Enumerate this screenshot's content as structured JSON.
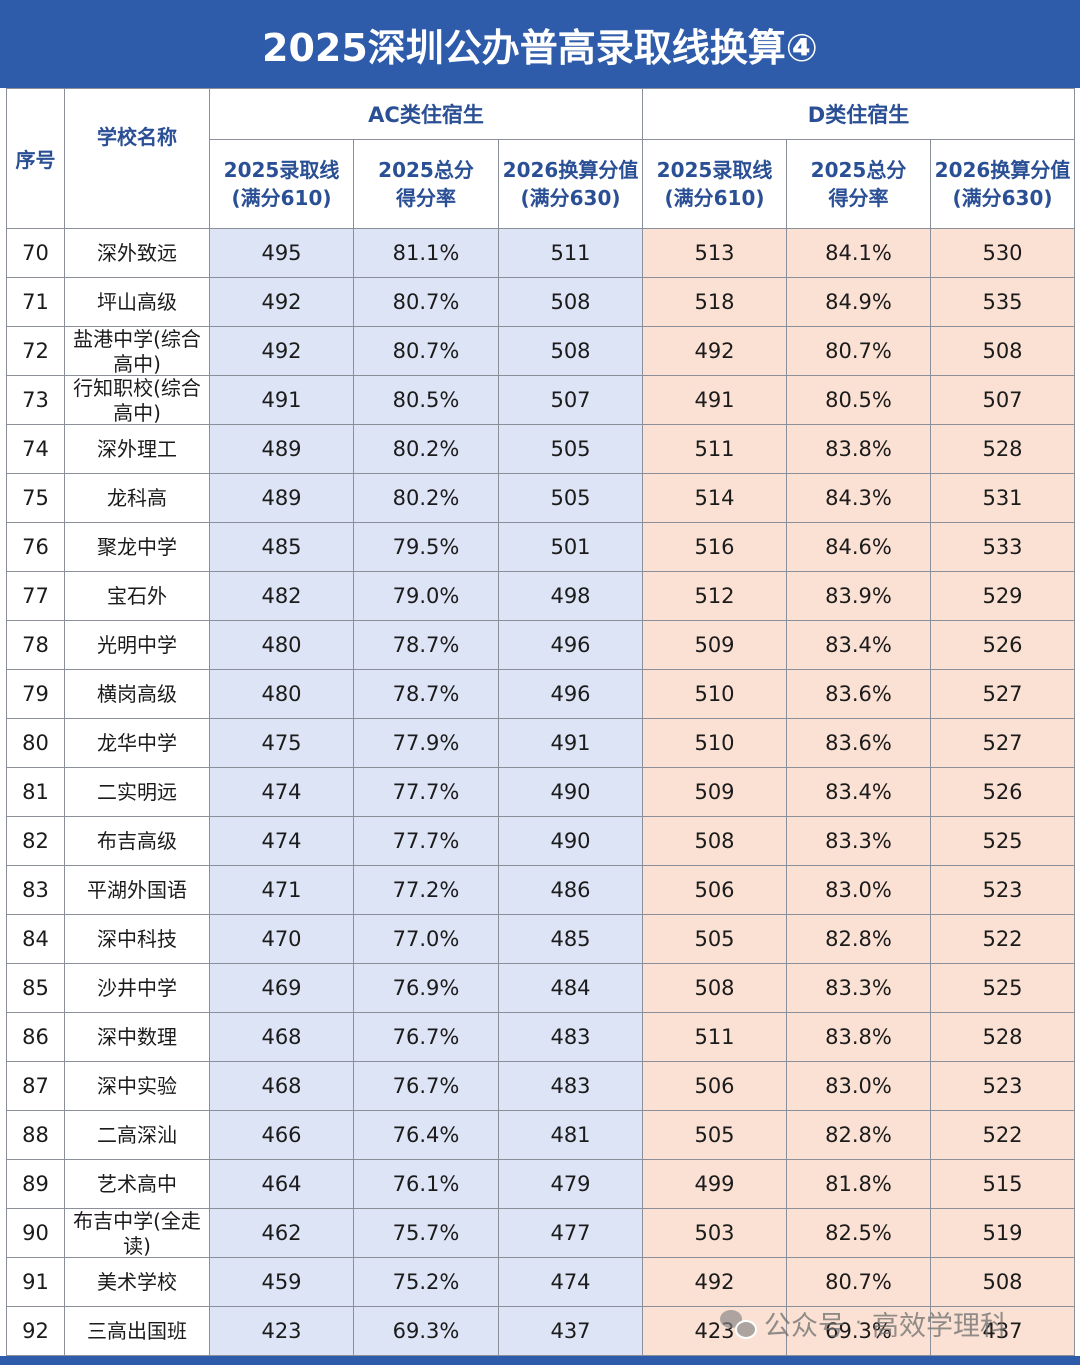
{
  "title": "2025深圳公办普高录取线换算④",
  "headers": {
    "seq": "序号",
    "school": "学校名称",
    "group_ac": "AC类住宿生",
    "group_d": "D类住宿生",
    "line_2025_a": "2025录取线",
    "line_2025_b": "(满分610)",
    "rate_a": "2025总分",
    "rate_b": "得分率",
    "conv_a": "2026换算分值",
    "conv_b": "(满分630)"
  },
  "rows": [
    {
      "seq": "70",
      "school": "深外致远",
      "ac_line": "495",
      "ac_rate": "81.1%",
      "ac_conv": "511",
      "d_line": "513",
      "d_rate": "84.1%",
      "d_conv": "530"
    },
    {
      "seq": "71",
      "school": "坪山高级",
      "ac_line": "492",
      "ac_rate": "80.7%",
      "ac_conv": "508",
      "d_line": "518",
      "d_rate": "84.9%",
      "d_conv": "535"
    },
    {
      "seq": "72",
      "school": "盐港中学(综合高中)",
      "ac_line": "492",
      "ac_rate": "80.7%",
      "ac_conv": "508",
      "d_line": "492",
      "d_rate": "80.7%",
      "d_conv": "508"
    },
    {
      "seq": "73",
      "school": "行知职校(综合高中)",
      "ac_line": "491",
      "ac_rate": "80.5%",
      "ac_conv": "507",
      "d_line": "491",
      "d_rate": "80.5%",
      "d_conv": "507"
    },
    {
      "seq": "74",
      "school": "深外理工",
      "ac_line": "489",
      "ac_rate": "80.2%",
      "ac_conv": "505",
      "d_line": "511",
      "d_rate": "83.8%",
      "d_conv": "528"
    },
    {
      "seq": "75",
      "school": "龙科高",
      "ac_line": "489",
      "ac_rate": "80.2%",
      "ac_conv": "505",
      "d_line": "514",
      "d_rate": "84.3%",
      "d_conv": "531"
    },
    {
      "seq": "76",
      "school": "聚龙中学",
      "ac_line": "485",
      "ac_rate": "79.5%",
      "ac_conv": "501",
      "d_line": "516",
      "d_rate": "84.6%",
      "d_conv": "533"
    },
    {
      "seq": "77",
      "school": "宝石外",
      "ac_line": "482",
      "ac_rate": "79.0%",
      "ac_conv": "498",
      "d_line": "512",
      "d_rate": "83.9%",
      "d_conv": "529"
    },
    {
      "seq": "78",
      "school": "光明中学",
      "ac_line": "480",
      "ac_rate": "78.7%",
      "ac_conv": "496",
      "d_line": "509",
      "d_rate": "83.4%",
      "d_conv": "526"
    },
    {
      "seq": "79",
      "school": "横岗高级",
      "ac_line": "480",
      "ac_rate": "78.7%",
      "ac_conv": "496",
      "d_line": "510",
      "d_rate": "83.6%",
      "d_conv": "527"
    },
    {
      "seq": "80",
      "school": "龙华中学",
      "ac_line": "475",
      "ac_rate": "77.9%",
      "ac_conv": "491",
      "d_line": "510",
      "d_rate": "83.6%",
      "d_conv": "527"
    },
    {
      "seq": "81",
      "school": "二实明远",
      "ac_line": "474",
      "ac_rate": "77.7%",
      "ac_conv": "490",
      "d_line": "509",
      "d_rate": "83.4%",
      "d_conv": "526"
    },
    {
      "seq": "82",
      "school": "布吉高级",
      "ac_line": "474",
      "ac_rate": "77.7%",
      "ac_conv": "490",
      "d_line": "508",
      "d_rate": "83.3%",
      "d_conv": "525"
    },
    {
      "seq": "83",
      "school": "平湖外国语",
      "ac_line": "471",
      "ac_rate": "77.2%",
      "ac_conv": "486",
      "d_line": "506",
      "d_rate": "83.0%",
      "d_conv": "523"
    },
    {
      "seq": "84",
      "school": "深中科技",
      "ac_line": "470",
      "ac_rate": "77.0%",
      "ac_conv": "485",
      "d_line": "505",
      "d_rate": "82.8%",
      "d_conv": "522"
    },
    {
      "seq": "85",
      "school": "沙井中学",
      "ac_line": "469",
      "ac_rate": "76.9%",
      "ac_conv": "484",
      "d_line": "508",
      "d_rate": "83.3%",
      "d_conv": "525"
    },
    {
      "seq": "86",
      "school": "深中数理",
      "ac_line": "468",
      "ac_rate": "76.7%",
      "ac_conv": "483",
      "d_line": "511",
      "d_rate": "83.8%",
      "d_conv": "528"
    },
    {
      "seq": "87",
      "school": "深中实验",
      "ac_line": "468",
      "ac_rate": "76.7%",
      "ac_conv": "483",
      "d_line": "506",
      "d_rate": "83.0%",
      "d_conv": "523"
    },
    {
      "seq": "88",
      "school": "二高深汕",
      "ac_line": "466",
      "ac_rate": "76.4%",
      "ac_conv": "481",
      "d_line": "505",
      "d_rate": "82.8%",
      "d_conv": "522"
    },
    {
      "seq": "89",
      "school": "艺术高中",
      "ac_line": "464",
      "ac_rate": "76.1%",
      "ac_conv": "479",
      "d_line": "499",
      "d_rate": "81.8%",
      "d_conv": "515"
    },
    {
      "seq": "90",
      "school": "布吉中学(全走读)",
      "ac_line": "462",
      "ac_rate": "75.7%",
      "ac_conv": "477",
      "d_line": "503",
      "d_rate": "82.5%",
      "d_conv": "519"
    },
    {
      "seq": "91",
      "school": "美术学校",
      "ac_line": "459",
      "ac_rate": "75.2%",
      "ac_conv": "474",
      "d_line": "492",
      "d_rate": "80.7%",
      "d_conv": "508"
    },
    {
      "seq": "92",
      "school": "三高出国班",
      "ac_line": "423",
      "ac_rate": "69.3%",
      "ac_conv": "437",
      "d_line": "423",
      "d_rate": "69.3%",
      "d_conv": "437"
    }
  ],
  "watermark": {
    "icon": "wechat-icon",
    "account_label": "公众号",
    "separator": "·",
    "account_name": "高效学理科"
  },
  "colors": {
    "title_bg": "#2f5bab",
    "ac_bg": "#dde4f5",
    "d_bg": "#fbe1d4",
    "header_text": "#2a4f95"
  }
}
